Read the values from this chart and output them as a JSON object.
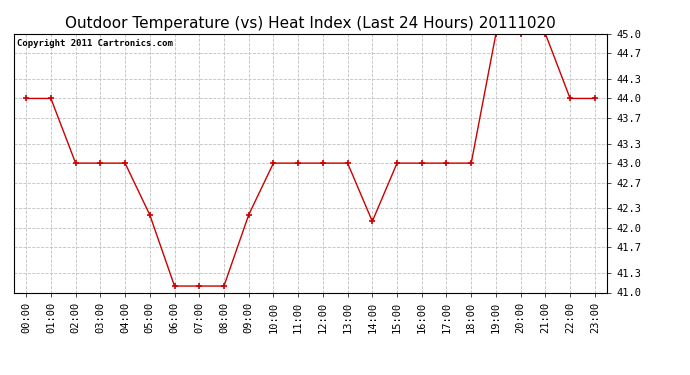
{
  "title": "Outdoor Temperature (vs) Heat Index (Last 24 Hours) 20111020",
  "copyright_text": "Copyright 2011 Cartronics.com",
  "x_labels": [
    "00:00",
    "01:00",
    "02:00",
    "03:00",
    "04:00",
    "05:00",
    "06:00",
    "07:00",
    "08:00",
    "09:00",
    "10:00",
    "11:00",
    "12:00",
    "13:00",
    "14:00",
    "15:00",
    "16:00",
    "17:00",
    "18:00",
    "19:00",
    "20:00",
    "21:00",
    "22:00",
    "23:00"
  ],
  "y_values": [
    44.0,
    44.0,
    43.0,
    43.0,
    43.0,
    42.2,
    41.1,
    41.1,
    41.1,
    42.2,
    43.0,
    43.0,
    43.0,
    43.0,
    42.1,
    43.0,
    43.0,
    43.0,
    43.0,
    45.0,
    45.0,
    45.0,
    44.0,
    44.0
  ],
  "ylim": [
    41.0,
    45.0
  ],
  "yticks": [
    41.0,
    41.3,
    41.7,
    42.0,
    42.3,
    42.7,
    43.0,
    43.3,
    43.7,
    44.0,
    44.3,
    44.7,
    45.0
  ],
  "ytick_labels": [
    "41.0",
    "41.3",
    "41.7",
    "42.0",
    "42.3",
    "42.7",
    "43.0",
    "43.3",
    "43.7",
    "44.0",
    "44.3",
    "44.7",
    "45.0"
  ],
  "line_color": "#cc0000",
  "marker_color": "#cc0000",
  "bg_color": "#ffffff",
  "plot_bg_color": "#ffffff",
  "grid_color": "#c0c0c0",
  "title_fontsize": 11,
  "tick_fontsize": 7.5,
  "copyright_fontsize": 6.5
}
